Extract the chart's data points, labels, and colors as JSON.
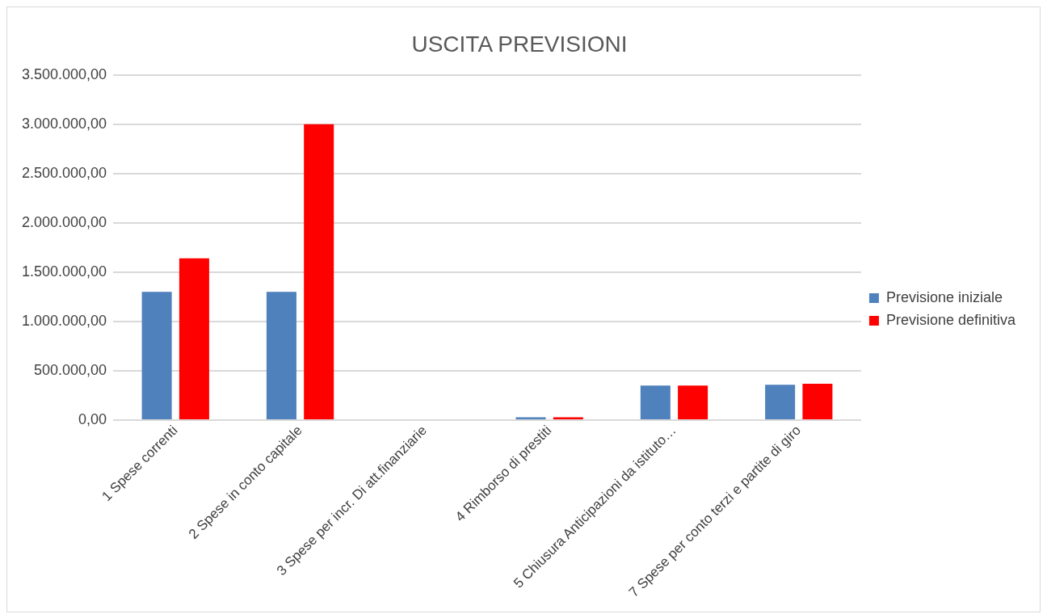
{
  "chart_data": {
    "type": "bar",
    "title": "USCITA PREVISIONI",
    "categories": [
      "1 Spese correnti",
      "2 Spese in conto capitale",
      "3 Spese per incr. Di att.finanziarie",
      "4 Rimborso di prestiti",
      "5 Chiusura Anticipazioni da istituto…",
      "7 Spese per conto terzi e partite di giro"
    ],
    "series": [
      {
        "name": "Previsione iniziale",
        "color": "#4f81bd",
        "values": [
          1300000,
          1300000,
          0,
          30000,
          350000,
          360000
        ]
      },
      {
        "name": "Previsione definitiva",
        "color": "#ff0000",
        "values": [
          1640000,
          3000000,
          0,
          30000,
          350000,
          370000
        ]
      }
    ],
    "ylim": [
      0,
      3500000
    ],
    "yticks": [
      {
        "value": 0,
        "label": "0,00"
      },
      {
        "value": 500000,
        "label": "500.000,00"
      },
      {
        "value": 1000000,
        "label": "1.000.000,00"
      },
      {
        "value": 1500000,
        "label": "1.500.000,00"
      },
      {
        "value": 2000000,
        "label": "2.000.000,00"
      },
      {
        "value": 2500000,
        "label": "2.500.000,00"
      },
      {
        "value": 3000000,
        "label": "3.000.000,00"
      },
      {
        "value": 3500000,
        "label": "3.500.000,00"
      }
    ],
    "grid": "y",
    "legend": "right"
  }
}
